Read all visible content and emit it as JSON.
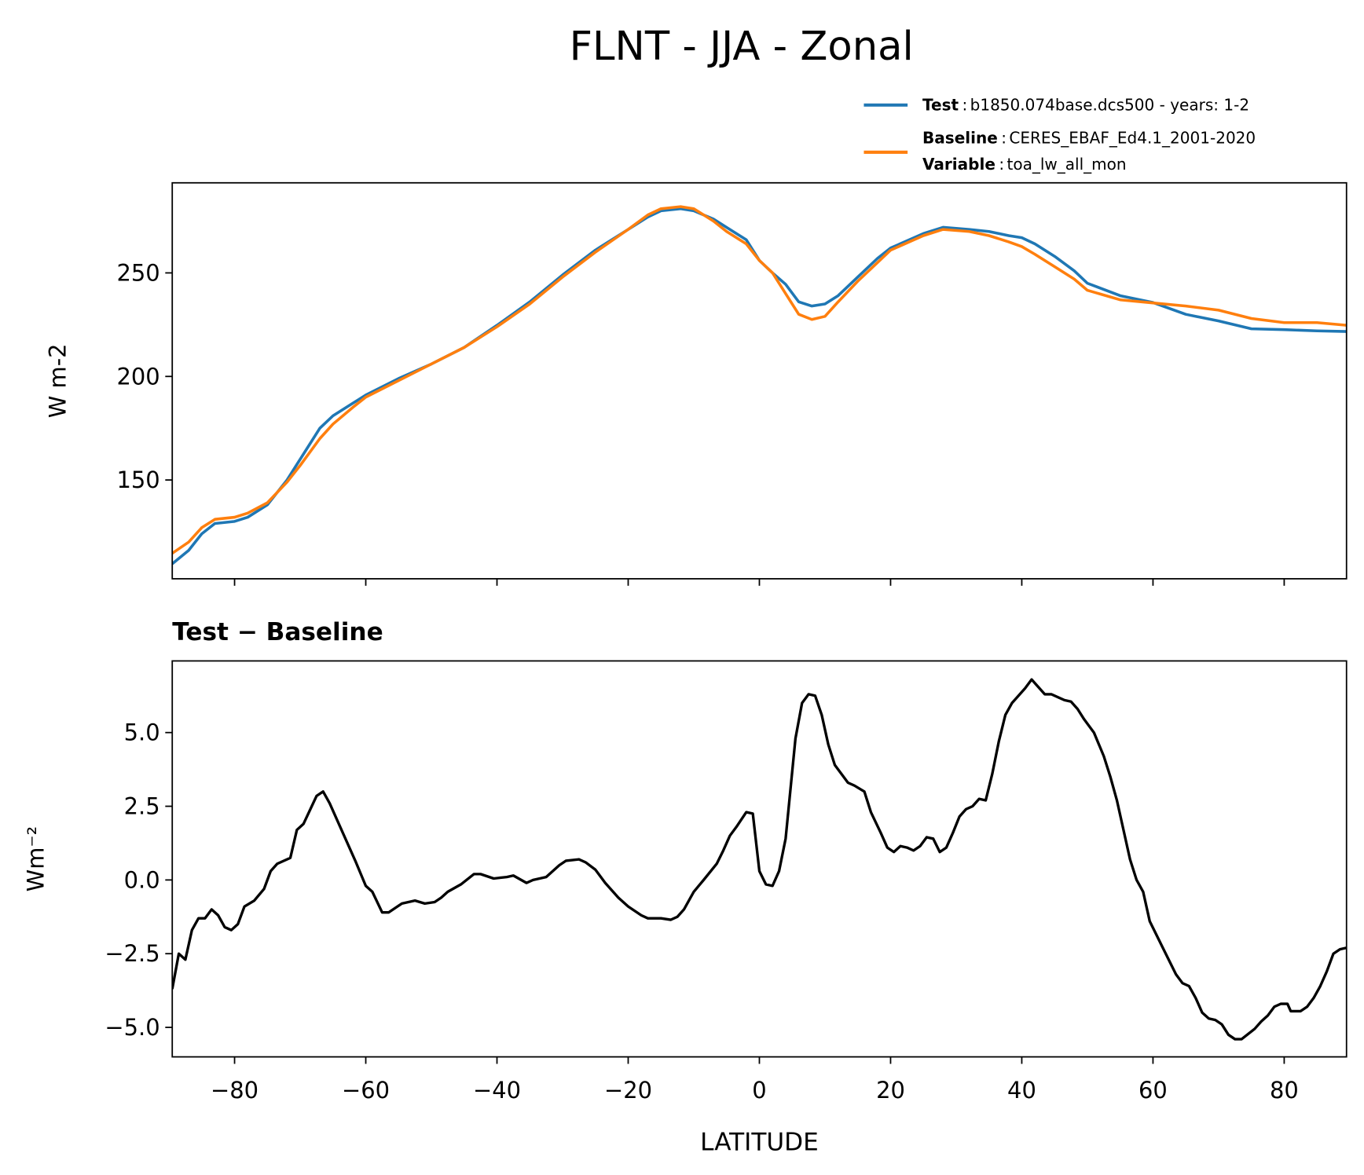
{
  "chart_data": [
    {
      "type": "line",
      "title": "FLNT - JJA - Zonal",
      "ylabel": "W m-2",
      "xlim": [
        -89.5,
        89.5
      ],
      "ylim": [
        102.3,
        293.5
      ],
      "yticks": [
        150,
        200,
        250
      ],
      "x": [
        -89.5,
        -87,
        -85,
        -83,
        -80,
        -78,
        -75,
        -72,
        -70,
        -67,
        -65,
        -62,
        -60,
        -55,
        -50,
        -45,
        -40,
        -35,
        -30,
        -25,
        -20,
        -17,
        -15,
        -12,
        -10,
        -7,
        -5,
        -2,
        0,
        2,
        4,
        6,
        8,
        10,
        12,
        15,
        18,
        20,
        25,
        28,
        32,
        35,
        38,
        40,
        42,
        45,
        48,
        50,
        55,
        60,
        65,
        70,
        75,
        80,
        85,
        89.5
      ],
      "series": [
        {
          "name": "Test",
          "description": "b1850.074base.dcs500 - years: 1-2",
          "color": "#1f77b4",
          "values": [
            109.5,
            116,
            124,
            129,
            130,
            132,
            138,
            150,
            160,
            175,
            181,
            187,
            191,
            199,
            206,
            214,
            224.7,
            236,
            249,
            261,
            271,
            277,
            280,
            281,
            280,
            276,
            272,
            266,
            256,
            250,
            244.5,
            236,
            234,
            235,
            239,
            248,
            257,
            262,
            269,
            272,
            271,
            270,
            268,
            267,
            264,
            258,
            251,
            245,
            239,
            235.7,
            230,
            226.8,
            223,
            222.6,
            222,
            221.7
          ]
        },
        {
          "name": "Baseline",
          "description": "CERES_EBAF_Ed4.1_2001-2020",
          "color": "#ff7f0e",
          "values": [
            114.6,
            120,
            127,
            131,
            132,
            134,
            139,
            149,
            157,
            170,
            177,
            185,
            190,
            198,
            206,
            214,
            224,
            235,
            248,
            260,
            271,
            278,
            281,
            282,
            281,
            275,
            270,
            264,
            256,
            250,
            240,
            230,
            227.5,
            229,
            236,
            246,
            255,
            261,
            268,
            271,
            270,
            268,
            265,
            262.7,
            259,
            253,
            247,
            241.6,
            237,
            235.5,
            234,
            232,
            228,
            226,
            226,
            224.7
          ]
        }
      ],
      "separator": ":",
      "variable_label": "Variable",
      "variable": "toa_lw_all_mon"
    },
    {
      "type": "line",
      "title": "Test − Baseline",
      "xlabel": "LATITUDE",
      "ylabel": "Wm⁻²",
      "xlim": [
        -89.5,
        89.5
      ],
      "ylim": [
        -6.0,
        7.43
      ],
      "xticks": [
        {
          "value": -80,
          "label": "−80"
        },
        {
          "value": -60,
          "label": "−60"
        },
        {
          "value": -40,
          "label": "−40"
        },
        {
          "value": -20,
          "label": "−20"
        },
        0,
        20,
        40,
        60,
        80
      ],
      "yticks": [
        {
          "value": -5,
          "label": "−5.0"
        },
        {
          "value": -2.5,
          "label": "−2.5"
        },
        {
          "value": 0,
          "label": "0.0"
        },
        2.5,
        {
          "value": 5,
          "label": "5.0"
        }
      ],
      "x": [
        -89.5,
        -88.5,
        -87.5,
        -86.5,
        -85.5,
        -84.5,
        -83.5,
        -82.5,
        -81.5,
        -80.5,
        -79.5,
        -78.5,
        -77,
        -75.5,
        -74.5,
        -73.5,
        -71.5,
        -70.5,
        -69.5,
        -67.5,
        -66.5,
        -65.5,
        -63.5,
        -61.5,
        -60,
        -59,
        -57.5,
        -56.5,
        -54.5,
        -53.5,
        -52.5,
        -51,
        -49.5,
        -48.5,
        -47.5,
        -45.5,
        -43.5,
        -42.5,
        -40.5,
        -38.5,
        -37.5,
        -35.5,
        -34.5,
        -32.5,
        -30.5,
        -29.5,
        -27.5,
        -26.5,
        -25,
        -23.5,
        -21.5,
        -20,
        -18,
        -17,
        -15,
        -13.5,
        -12.5,
        -11.5,
        -10,
        -8.5,
        -6.5,
        -5.5,
        -4.5,
        -3.5,
        -2,
        -1,
        0,
        1,
        2,
        3,
        4,
        5.5,
        6.5,
        7.5,
        8.5,
        9.5,
        10.5,
        11.5,
        13.5,
        14.5,
        16,
        17,
        18.5,
        19.5,
        20.5,
        21.5,
        22.5,
        23.5,
        24.5,
        25.5,
        26.5,
        27.5,
        28.5,
        29.5,
        30.5,
        31.5,
        32.5,
        33.5,
        34.5,
        35.5,
        36.5,
        37.5,
        38.5,
        40.5,
        41.5,
        43.5,
        44.5,
        46.5,
        47.5,
        48.5,
        49.5,
        51,
        52.5,
        53.5,
        54.5,
        55.5,
        56.5,
        57.5,
        58.5,
        59.5,
        61.5,
        63.5,
        64.5,
        65.5,
        66.5,
        67.5,
        68.5,
        69.5,
        70.5,
        71.5,
        72.5,
        73.5,
        75.5,
        76.5,
        77.5,
        78.5,
        79.5,
        80.5,
        81,
        82.5,
        83.5,
        84.5,
        85.5,
        86.5,
        87.5,
        88.5,
        89.5
      ],
      "series": [
        {
          "color": "#000000",
          "values": [
            -3.7,
            -2.5,
            -2.7,
            -1.7,
            -1.3,
            -1.3,
            -1.0,
            -1.2,
            -1.6,
            -1.7,
            -1.5,
            -0.9,
            -0.7,
            -0.3,
            0.3,
            0.55,
            0.75,
            1.7,
            1.9,
            2.85,
            3.0,
            2.6,
            1.6,
            0.6,
            -0.2,
            -0.4,
            -1.1,
            -1.1,
            -0.8,
            -0.75,
            -0.7,
            -0.8,
            -0.75,
            -0.6,
            -0.4,
            -0.15,
            0.2,
            0.2,
            0.05,
            0.1,
            0.15,
            -0.1,
            0.0,
            0.1,
            0.5,
            0.65,
            0.7,
            0.6,
            0.35,
            -0.1,
            -0.6,
            -0.9,
            -1.2,
            -1.3,
            -1.3,
            -1.35,
            -1.25,
            -1.0,
            -0.4,
            0.0,
            0.55,
            1.0,
            1.5,
            1.8,
            2.3,
            2.25,
            0.3,
            -0.15,
            -0.2,
            0.3,
            1.4,
            4.8,
            6.0,
            6.3,
            6.25,
            5.6,
            4.6,
            3.9,
            3.3,
            3.2,
            3.0,
            2.3,
            1.6,
            1.1,
            0.95,
            1.15,
            1.1,
            1.0,
            1.15,
            1.45,
            1.4,
            0.95,
            1.1,
            1.6,
            2.15,
            2.4,
            2.5,
            2.75,
            2.7,
            3.6,
            4.7,
            5.6,
            6.0,
            6.5,
            6.8,
            6.3,
            6.3,
            6.1,
            6.05,
            5.8,
            5.45,
            5.0,
            4.2,
            3.5,
            2.7,
            1.7,
            0.7,
            0.0,
            -0.4,
            -1.4,
            -2.3,
            -3.2,
            -3.5,
            -3.6,
            -4.0,
            -4.5,
            -4.7,
            -4.75,
            -4.9,
            -5.25,
            -5.4,
            -5.4,
            -5.05,
            -4.8,
            -4.6,
            -4.3,
            -4.2,
            -4.2,
            -4.45,
            -4.45,
            -4.3,
            -4.0,
            -3.6,
            -3.1,
            -2.5,
            -2.35,
            -2.3
          ]
        }
      ]
    }
  ]
}
